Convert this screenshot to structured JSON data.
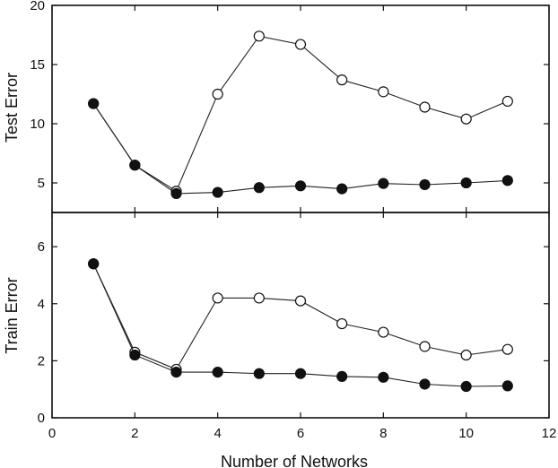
{
  "chart_data": [
    {
      "type": "line",
      "panel": "top",
      "ylabel": "Test Error",
      "xlabel": "",
      "xlim": [
        0,
        12
      ],
      "ylim": [
        2.5,
        20
      ],
      "x_ticks": [
        "0",
        "2",
        "4",
        "6",
        "8",
        "10",
        "12"
      ],
      "y_ticks": [
        {
          "value": 5,
          "label": "5"
        },
        {
          "value": 10,
          "label": "10"
        },
        {
          "value": 15,
          "label": "15"
        },
        {
          "value": 20,
          "label": "20"
        }
      ],
      "grid": false,
      "series": [
        {
          "marker": "open-circle",
          "x": [
            1,
            2,
            3,
            4,
            5,
            6,
            7,
            8,
            9,
            10,
            11
          ],
          "y": [
            11.7,
            6.5,
            4.3,
            12.5,
            17.4,
            16.7,
            13.7,
            12.7,
            11.4,
            10.4,
            11.9
          ]
        },
        {
          "marker": "filled-circle",
          "x": [
            1,
            2,
            3,
            4,
            5,
            6,
            7,
            8,
            9,
            10,
            11
          ],
          "y": [
            11.7,
            6.5,
            4.1,
            4.2,
            4.6,
            4.75,
            4.5,
            4.95,
            4.85,
            5.0,
            5.2
          ]
        }
      ]
    },
    {
      "type": "line",
      "panel": "bottom",
      "ylabel": "Train Error",
      "xlabel": "Number of Networks",
      "xlim": [
        0,
        12
      ],
      "ylim": [
        0,
        7.2
      ],
      "x_ticks": [
        {
          "value": 0,
          "label": "0"
        },
        {
          "value": 2,
          "label": "2"
        },
        {
          "value": 4,
          "label": "4"
        },
        {
          "value": 6,
          "label": "6"
        },
        {
          "value": 8,
          "label": "8"
        },
        {
          "value": 10,
          "label": "10"
        },
        {
          "value": 12,
          "label": "12"
        }
      ],
      "y_ticks": [
        {
          "value": 0,
          "label": "0"
        },
        {
          "value": 2,
          "label": "2"
        },
        {
          "value": 4,
          "label": "4"
        },
        {
          "value": 6,
          "label": "6"
        }
      ],
      "grid": false,
      "series": [
        {
          "marker": "open-circle",
          "x": [
            1,
            2,
            3,
            4,
            5,
            6,
            7,
            8,
            9,
            10,
            11
          ],
          "y": [
            5.4,
            2.3,
            1.7,
            4.2,
            4.2,
            4.1,
            3.3,
            3.0,
            2.5,
            2.2,
            2.4
          ]
        },
        {
          "marker": "filled-circle",
          "x": [
            1,
            2,
            3,
            4,
            5,
            6,
            7,
            8,
            9,
            10,
            11
          ],
          "y": [
            5.4,
            2.2,
            1.6,
            1.6,
            1.55,
            1.55,
            1.45,
            1.42,
            1.18,
            1.1,
            1.12
          ]
        }
      ]
    }
  ]
}
